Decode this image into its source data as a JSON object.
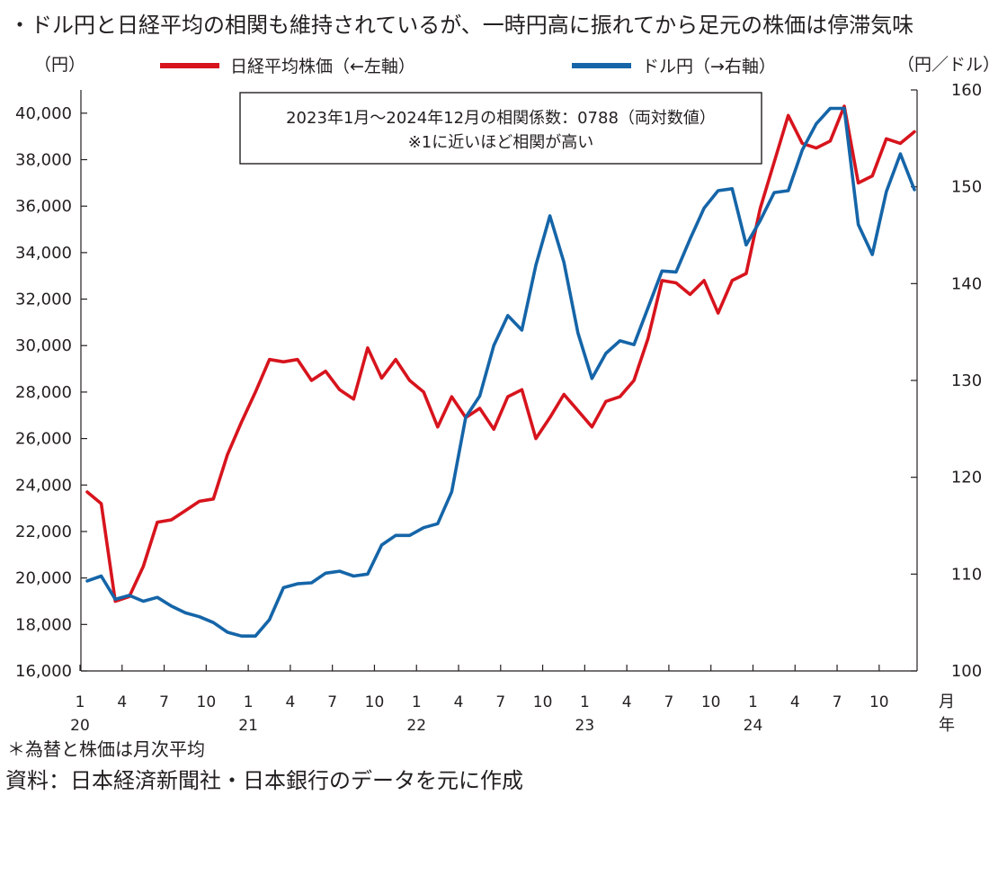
{
  "title": "・ドル円と日経平均の相関も維持されているが、一時円高に振れてから足元の株価は停滞気味",
  "left_unit": "（円）",
  "right_unit": "（円／ドル）",
  "note": "＊為替と株価は月次平均",
  "source": "資料：日本経済新聞社・日本銀行のデータを元に作成",
  "annotation": {
    "line1": "2023年1月〜2024年12月の相関係数：0788（両対数値）",
    "line2": "※1に近いほど相関が高い"
  },
  "x_unit_month": "月",
  "x_unit_year": "年",
  "colors": {
    "nikkei": "#d7141d",
    "usdjpy": "#1565a8",
    "axis": "#231f20"
  },
  "chart_data": {
    "type": "line",
    "left_axis": {
      "min": 16000,
      "max": 41000,
      "ticks": [
        "16,000",
        "18,000",
        "20,000",
        "22,000",
        "24,000",
        "26,000",
        "28,000",
        "30,000",
        "32,000",
        "34,000",
        "36,000",
        "38,000",
        "40,000"
      ]
    },
    "right_axis": {
      "min": 100,
      "max": 160,
      "ticks": [
        "100",
        "110",
        "120",
        "130",
        "140",
        "150",
        "160"
      ]
    },
    "x_month_ticks": [
      "1",
      "4",
      "7",
      "10",
      "1",
      "4",
      "7",
      "10",
      "1",
      "4",
      "7",
      "10",
      "1",
      "4",
      "7",
      "10",
      "1",
      "4",
      "7",
      "10"
    ],
    "x_year_ticks": [
      "20",
      "21",
      "22",
      "23",
      "24"
    ],
    "series": [
      {
        "name": "日経平均株価（←左軸）",
        "axis": "left",
        "values": [
          23700,
          23200,
          19000,
          19200,
          20500,
          22400,
          22500,
          22900,
          23300,
          23400,
          25300,
          26700,
          28000,
          29400,
          29300,
          29400,
          28500,
          28900,
          28100,
          27700,
          29900,
          28600,
          29400,
          28500,
          28000,
          26500,
          27800,
          26900,
          27300,
          26400,
          27800,
          28100,
          26000,
          26900,
          27900,
          27200,
          26500,
          27600,
          27800,
          28500,
          30300,
          32800,
          32700,
          32200,
          32800,
          31400,
          32800,
          33100,
          35900,
          37900,
          39900,
          38700,
          38500,
          38800,
          40300,
          37000,
          37300,
          38900,
          38700,
          39200
        ]
      },
      {
        "name": "ドル円（→右軸）",
        "axis": "right",
        "values": [
          109.3,
          109.8,
          107.4,
          107.8,
          107.2,
          107.6,
          106.7,
          106.0,
          105.6,
          105.0,
          104.0,
          103.6,
          103.6,
          105.3,
          108.6,
          109.0,
          109.1,
          110.1,
          110.3,
          109.8,
          110.0,
          113.0,
          114.0,
          114.0,
          114.8,
          115.2,
          118.5,
          126.2,
          128.4,
          133.6,
          136.7,
          135.2,
          141.9,
          147.0,
          142.2,
          134.9,
          130.2,
          132.8,
          134.1,
          133.7,
          137.5,
          141.3,
          141.2,
          144.6,
          147.8,
          149.6,
          149.8,
          144.0,
          146.5,
          149.4,
          149.6,
          153.8,
          156.5,
          158.1,
          158.1,
          146.1,
          143.0,
          149.5,
          153.4,
          149.7
        ]
      }
    ]
  }
}
